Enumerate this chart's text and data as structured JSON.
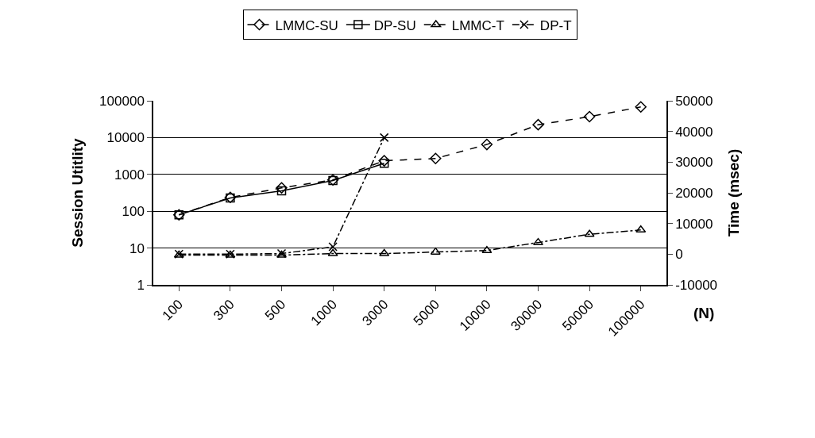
{
  "chart_data": {
    "type": "line",
    "categories": [
      "100",
      "300",
      "500",
      "1000",
      "3000",
      "5000",
      "10000",
      "30000",
      "50000",
      "100000"
    ],
    "xlabel": "(N)",
    "ylabel": "Session Utitlity",
    "y2label": "Time (msec)",
    "series": [
      {
        "name": "LMMC-SU",
        "color": "#000000",
        "marker": "diamond",
        "line_style": "dashed",
        "values": [
          80,
          237,
          430,
          710,
          2350,
          2700,
          6500,
          22400,
          37000,
          68000
        ]
      },
      {
        "name": "DP-SU",
        "color": "#000000",
        "marker": "square",
        "line_style": "solid",
        "values": [
          80,
          228,
          360,
          680,
          2000,
          null,
          null,
          null,
          null,
          null
        ]
      },
      {
        "name": "LMMC-T",
        "color": "#000000",
        "marker": "triangle",
        "line_style": "dashdot",
        "axis": "y2",
        "values": [
          -300,
          -300,
          -300,
          200,
          200,
          700,
          1200,
          3800,
          6500,
          7900
        ]
      },
      {
        "name": "DP-T",
        "color": "#000000",
        "marker": "cross",
        "line_style": "dashdot",
        "axis": "y2",
        "values": [
          0,
          0,
          200,
          2400,
          38000,
          null,
          null,
          null,
          null,
          null
        ]
      }
    ],
    "log": "y",
    "ylim": [
      1,
      100000
    ],
    "yticks": [
      1,
      10,
      100,
      1000,
      10000,
      100000
    ],
    "y2lim": [
      -10000,
      50000
    ],
    "y2ticks": [
      -10000,
      0,
      10000,
      20000,
      30000,
      40000,
      50000
    ],
    "grid": "y",
    "legend": "top"
  }
}
